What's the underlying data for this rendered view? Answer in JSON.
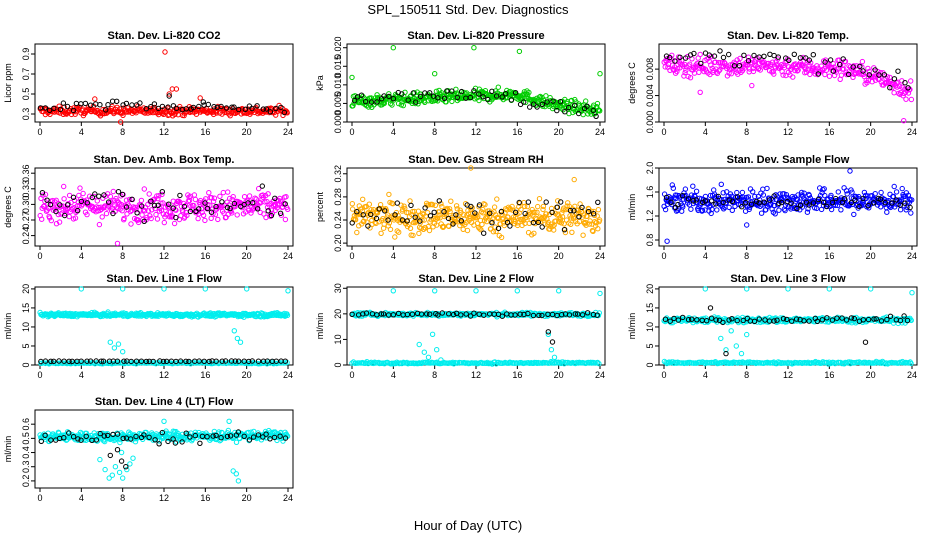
{
  "figure": {
    "title": "SPL_150511  Std. Dev. Diagnostics",
    "xlabel": "Hour of Day (UTC)"
  },
  "chart_data": [
    {
      "type": "scatter",
      "title": "Stan. Dev. Li-820 CO2",
      "ylabel": "Licor ppm",
      "xlim": [
        0,
        24
      ],
      "xticks": [
        0,
        4,
        8,
        12,
        16,
        20,
        24
      ],
      "ylim": [
        0.22,
        1.0
      ],
      "yticks": [
        0.3,
        0.5,
        0.7,
        0.9
      ],
      "ytick_labels": [
        "0.3",
        "0.5",
        "0.7",
        "0.9"
      ],
      "series": [
        {
          "color": "#ff0000",
          "n": 300,
          "center": [
            [
              0,
              0.33
            ],
            [
              24,
              0.33
            ]
          ],
          "spread": 0.03,
          "extra": [
            [
              12.1,
              0.92
            ],
            [
              12.5,
              0.5
            ],
            [
              12.8,
              0.55
            ],
            [
              13.2,
              0.55
            ],
            [
              7.8,
              0.22
            ],
            [
              15.5,
              0.46
            ],
            [
              5.3,
              0.45
            ]
          ]
        },
        {
          "color": "#000000",
          "n": 55,
          "center": [
            [
              0,
              0.34
            ],
            [
              4,
              0.4
            ],
            [
              24,
              0.35
            ]
          ],
          "spread": 0.03,
          "extra": [
            [
              12.5,
              0.48
            ],
            [
              15.8,
              0.42
            ]
          ]
        }
      ]
    },
    {
      "type": "scatter",
      "title": "Stan. Dev. Li-820 Pressure",
      "ylabel": "kPa",
      "xlim": [
        0,
        24
      ],
      "xticks": [
        0,
        4,
        8,
        12,
        16,
        20,
        24
      ],
      "ylim": [
        0.0,
        0.021
      ],
      "yticks": [
        0.0,
        0.005,
        0.01,
        0.015,
        0.02
      ],
      "ytick_labels": [
        "0.000",
        "0.005",
        "0.010",
        "0.015",
        "0.020"
      ],
      "series": [
        {
          "color": "#00cc00",
          "n": 380,
          "center": [
            [
              0,
              0.0055
            ],
            [
              12,
              0.007
            ],
            [
              16,
              0.0075
            ],
            [
              19,
              0.005
            ],
            [
              24,
              0.003
            ]
          ],
          "spread": 0.0012,
          "extra": [
            [
              0,
              0.012
            ],
            [
              4,
              0.02
            ],
            [
              8,
              0.013
            ],
            [
              11.8,
              0.02
            ],
            [
              16.2,
              0.019
            ],
            [
              24,
              0.013
            ]
          ]
        },
        {
          "color": "#000000",
          "n": 55,
          "center": [
            [
              0,
              0.0065
            ],
            [
              14,
              0.0075
            ],
            [
              20,
              0.004
            ],
            [
              24,
              0.003
            ]
          ],
          "spread": 0.0012,
          "extra": []
        }
      ]
    },
    {
      "type": "scatter",
      "title": "Stan. Dev. Li-820 Temp.",
      "ylabel": "degrees C",
      "xlim": [
        0,
        24
      ],
      "xticks": [
        0,
        4,
        8,
        12,
        16,
        20,
        24
      ],
      "ylim": [
        0.0,
        0.0118
      ],
      "yticks": [
        0.0,
        0.004,
        0.008
      ],
      "ytick_labels": [
        "0.000",
        "0.004",
        "0.008"
      ],
      "series": [
        {
          "color": "#ff00ff",
          "n": 330,
          "center": [
            [
              0,
              0.0085
            ],
            [
              10,
              0.0085
            ],
            [
              18,
              0.008
            ],
            [
              22,
              0.006
            ],
            [
              24,
              0.0045
            ]
          ],
          "spread": 0.0011,
          "extra": [
            [
              23.2,
              0.0002
            ],
            [
              3.5,
              0.0045
            ],
            [
              8.5,
              0.0055
            ]
          ]
        },
        {
          "color": "#000000",
          "n": 50,
          "center": [
            [
              0,
              0.009
            ],
            [
              4,
              0.01
            ],
            [
              14,
              0.0092
            ],
            [
              20,
              0.0075
            ],
            [
              24,
              0.005
            ]
          ],
          "spread": 0.0009,
          "extra": []
        }
      ]
    },
    {
      "type": "scatter",
      "title": "Stan. Dev. Amb. Box Temp.",
      "ylabel": "degrees C",
      "xlim": [
        0,
        24
      ],
      "xticks": [
        0,
        4,
        8,
        12,
        16,
        20,
        24
      ],
      "ylim": [
        0.22,
        0.37
      ],
      "yticks": [
        0.24,
        0.27,
        0.3,
        0.33,
        0.36
      ],
      "ytick_labels": [
        "0.24",
        "0.27",
        "0.30",
        "0.33",
        "0.36"
      ],
      "series": [
        {
          "color": "#ff00ff",
          "n": 360,
          "center": [
            [
              0,
              0.296
            ],
            [
              24,
              0.296
            ]
          ],
          "spread": 0.02,
          "extra": [
            [
              7.5,
              0.225
            ]
          ]
        },
        {
          "color": "#000000",
          "n": 55,
          "center": [
            [
              0,
              0.3
            ],
            [
              24,
              0.3
            ]
          ],
          "spread": 0.018,
          "extra": []
        }
      ]
    },
    {
      "type": "scatter",
      "title": "Stan. Dev. Gas Stream RH",
      "ylabel": "percent",
      "xlim": [
        0,
        24
      ],
      "xticks": [
        0,
        4,
        8,
        12,
        16,
        20,
        24
      ],
      "ylim": [
        0.195,
        0.33
      ],
      "yticks": [
        0.2,
        0.24,
        0.28,
        0.32
      ],
      "ytick_labels": [
        "0.20",
        "0.24",
        "0.28",
        "0.32"
      ],
      "series": [
        {
          "color": "#ffaa00",
          "n": 420,
          "center": [
            [
              0,
              0.245
            ],
            [
              24,
              0.245
            ]
          ],
          "spread": 0.02,
          "extra": [
            [
              11.5,
              0.33
            ],
            [
              21.5,
              0.31
            ]
          ]
        },
        {
          "color": "#000000",
          "n": 55,
          "center": [
            [
              0,
              0.25
            ],
            [
              24,
              0.25
            ]
          ],
          "spread": 0.018,
          "extra": []
        }
      ]
    },
    {
      "type": "scatter",
      "title": "Stan. Dev. Sample Flow",
      "ylabel": "ml/min",
      "xlim": [
        0,
        24
      ],
      "xticks": [
        0,
        4,
        8,
        12,
        16,
        20,
        24
      ],
      "ylim": [
        0.7,
        2.0
      ],
      "yticks": [
        0.8,
        1.2,
        1.6,
        2.0
      ],
      "ytick_labels": [
        "0.8",
        "1.2",
        "1.6",
        "2.0"
      ],
      "series": [
        {
          "color": "#0000ff",
          "n": 400,
          "center": [
            [
              0,
              1.45
            ],
            [
              24,
              1.45
            ]
          ],
          "spread": 0.14,
          "extra": [
            [
              0.3,
              0.78
            ],
            [
              8,
              1.05
            ],
            [
              18,
              1.95
            ]
          ]
        },
        {
          "color": "#000000",
          "n": 55,
          "center": [
            [
              0,
              1.45
            ],
            [
              24,
              1.42
            ]
          ],
          "spread": 0.07,
          "extra": []
        }
      ]
    },
    {
      "type": "scatter",
      "title": "Stan. Dev. Line 1 Flow",
      "ylabel": "ml/min",
      "xlim": [
        0,
        24
      ],
      "xticks": [
        0,
        4,
        8,
        12,
        16,
        20,
        24
      ],
      "ylim": [
        0,
        20.5
      ],
      "yticks": [
        0,
        5,
        10,
        15,
        20
      ],
      "ytick_labels": [
        "0",
        "5",
        "10",
        "15",
        "20"
      ],
      "series": [
        {
          "color": "#00eeee",
          "n": 380,
          "center": [
            [
              0,
              13.2
            ],
            [
              24,
              13.2
            ]
          ],
          "spread": 0.35,
          "extra": [
            [
              4,
              20
            ],
            [
              8,
              20
            ],
            [
              12,
              20
            ],
            [
              16,
              20
            ],
            [
              20,
              20
            ],
            [
              24,
              19.5
            ],
            [
              6.8,
              6
            ],
            [
              7.2,
              4.5
            ],
            [
              7.6,
              5.5
            ],
            [
              8,
              3.5
            ],
            [
              18.8,
              9
            ],
            [
              19.1,
              7
            ],
            [
              19.4,
              6
            ]
          ]
        },
        {
          "color": "#00eeee",
          "n": 150,
          "center": [
            [
              0,
              0.5
            ],
            [
              24,
              0.5
            ]
          ],
          "spread": 0.15,
          "extra": []
        },
        {
          "color": "#000000",
          "n": 55,
          "center": [
            [
              0,
              1.0
            ],
            [
              24,
              1.0
            ]
          ],
          "spread": 0.05,
          "extra": []
        }
      ]
    },
    {
      "type": "scatter",
      "title": "Stan. Dev. Line 2 Flow",
      "ylabel": "ml/min",
      "xlim": [
        0,
        24
      ],
      "xticks": [
        0,
        4,
        8,
        12,
        16,
        20,
        24
      ],
      "ylim": [
        0,
        30.5
      ],
      "yticks": [
        0,
        10,
        20,
        30
      ],
      "ytick_labels": [
        "0",
        "10",
        "20",
        "30"
      ],
      "series": [
        {
          "color": "#00eeee",
          "n": 320,
          "center": [
            [
              0,
              19.8
            ],
            [
              24,
              19.8
            ]
          ],
          "spread": 0.5,
          "extra": [
            [
              4,
              29
            ],
            [
              8,
              29
            ],
            [
              12,
              29
            ],
            [
              16,
              29
            ],
            [
              20,
              29
            ],
            [
              24,
              28
            ],
            [
              6.5,
              8
            ],
            [
              7,
              5
            ],
            [
              7.4,
              3
            ],
            [
              7.8,
              12
            ],
            [
              8.2,
              6
            ],
            [
              8.6,
              2
            ],
            [
              19,
              12
            ],
            [
              19.3,
              6
            ],
            [
              19.6,
              3
            ]
          ]
        },
        {
          "color": "#00eeee",
          "n": 200,
          "center": [
            [
              0,
              0.8
            ],
            [
              24,
              0.8
            ]
          ],
          "spread": 0.25,
          "extra": []
        },
        {
          "color": "#000000",
          "n": 55,
          "center": [
            [
              0,
              19.8
            ],
            [
              24,
              19.8
            ]
          ],
          "spread": 0.4,
          "extra": [
            [
              19,
              13
            ],
            [
              19.4,
              9
            ]
          ]
        }
      ]
    },
    {
      "type": "scatter",
      "title": "Stan. Dev. Line 3 Flow",
      "ylabel": "ml/min",
      "xlim": [
        0,
        24
      ],
      "xticks": [
        0,
        4,
        8,
        12,
        16,
        20,
        24
      ],
      "ylim": [
        0,
        20.5
      ],
      "yticks": [
        0,
        5,
        10,
        15,
        20
      ],
      "ytick_labels": [
        "0",
        "5",
        "10",
        "15",
        "20"
      ],
      "series": [
        {
          "color": "#00eeee",
          "n": 320,
          "center": [
            [
              0,
              11.8
            ],
            [
              24,
              11.8
            ]
          ],
          "spread": 0.5,
          "extra": [
            [
              4,
              20
            ],
            [
              8,
              20
            ],
            [
              12,
              20
            ],
            [
              16,
              20
            ],
            [
              20,
              20
            ],
            [
              24,
              19
            ],
            [
              5.5,
              7
            ],
            [
              6,
              4
            ],
            [
              6.5,
              9
            ],
            [
              7,
              5
            ],
            [
              7.5,
              3
            ],
            [
              8,
              8
            ]
          ]
        },
        {
          "color": "#00eeee",
          "n": 200,
          "center": [
            [
              0,
              0.6
            ],
            [
              24,
              0.6
            ]
          ],
          "spread": 0.2,
          "extra": []
        },
        {
          "color": "#000000",
          "n": 55,
          "center": [
            [
              0,
              11.8
            ],
            [
              24,
              12.1
            ]
          ],
          "spread": 0.4,
          "extra": [
            [
              4.5,
              15
            ],
            [
              6,
              3
            ],
            [
              19.5,
              6
            ]
          ]
        }
      ]
    },
    {
      "type": "scatter",
      "title": "Stan. Dev. Line 4 (LT) Flow",
      "ylabel": "ml/min",
      "xlim": [
        0,
        24
      ],
      "xticks": [
        0,
        4,
        8,
        12,
        16,
        20,
        24
      ],
      "ylim": [
        0.15,
        0.7
      ],
      "yticks": [
        0.2,
        0.3,
        0.4,
        0.5,
        0.6
      ],
      "ytick_labels": [
        "0.2",
        "0.3",
        "0.4",
        "0.5",
        "0.6"
      ],
      "series": [
        {
          "color": "#00eeee",
          "n": 380,
          "center": [
            [
              0,
              0.51
            ],
            [
              24,
              0.52
            ]
          ],
          "spread": 0.025,
          "extra": [
            [
              5.8,
              0.35
            ],
            [
              6.3,
              0.28
            ],
            [
              6.7,
              0.22
            ],
            [
              7,
              0.24
            ],
            [
              7.3,
              0.3
            ],
            [
              7.7,
              0.26
            ],
            [
              8,
              0.22
            ],
            [
              8.4,
              0.28
            ],
            [
              8.7,
              0.32
            ],
            [
              9,
              0.36
            ],
            [
              18.7,
              0.27
            ],
            [
              19,
              0.25
            ],
            [
              19.2,
              0.2
            ],
            [
              18.3,
              0.62
            ],
            [
              12,
              0.62
            ],
            [
              7.9,
              0.4
            ]
          ]
        },
        {
          "color": "#000000",
          "n": 55,
          "center": [
            [
              0,
              0.5
            ],
            [
              24,
              0.51
            ]
          ],
          "spread": 0.03,
          "extra": [
            [
              7.5,
              0.42
            ],
            [
              7.9,
              0.34
            ],
            [
              8.3,
              0.3
            ],
            [
              6.8,
              0.38
            ]
          ]
        }
      ]
    }
  ]
}
